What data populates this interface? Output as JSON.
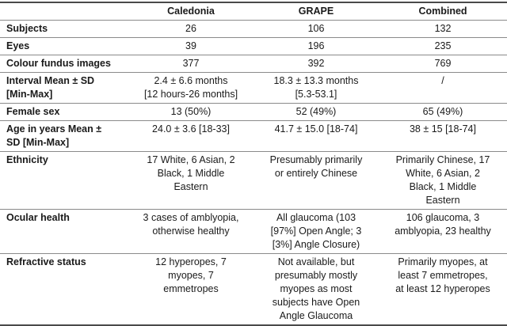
{
  "table": {
    "columns": [
      "",
      "Caledonia",
      "GRAPE",
      "Combined"
    ],
    "rows": [
      {
        "label": "Subjects",
        "values": [
          "26",
          "106",
          "132"
        ]
      },
      {
        "label": "Eyes",
        "values": [
          "39",
          "196",
          "235"
        ]
      },
      {
        "label": "Colour fundus images",
        "values": [
          "377",
          "392",
          "769"
        ]
      },
      {
        "label": "Interval Mean ± SD\n[Min-Max]",
        "values": [
          "2.4 ± 6.6 months\n[12 hours-26 months]",
          "18.3 ± 13.3 months\n[5.3-53.1]",
          "/"
        ]
      },
      {
        "label": "Female sex",
        "values": [
          "13 (50%)",
          "52 (49%)",
          "65 (49%)"
        ]
      },
      {
        "label": "Age in years Mean ±\nSD [Min-Max]",
        "values": [
          "24.0 ± 3.6 [18-33]",
          "41.7 ± 15.0 [18-74]",
          "38 ± 15 [18-74]"
        ]
      },
      {
        "label": "Ethnicity",
        "values": [
          "17 White, 6 Asian, 2\nBlack, 1 Middle\nEastern",
          "Presumably primarily\nor entirely Chinese",
          "Primarily Chinese, 17\nWhite, 6 Asian, 2\nBlack, 1 Middle\nEastern"
        ]
      },
      {
        "label": "Ocular health",
        "values": [
          "3 cases of amblyopia,\notherwise healthy",
          "All glaucoma (103\n[97%] Open Angle; 3\n[3%] Angle Closure)",
          "106 glaucoma, 3\namblyopia, 23 healthy"
        ]
      },
      {
        "label": "Refractive status",
        "values": [
          "12 hyperopes, 7\nmyopes, 7\nemmetropes",
          "Not available, but\npresumably mostly\nmyopes as most\nsubjects have Open\nAngle Glaucoma",
          "Primarily myopes, at\nleast 7 emmetropes,\nat least 12 hyperopes"
        ]
      }
    ]
  }
}
